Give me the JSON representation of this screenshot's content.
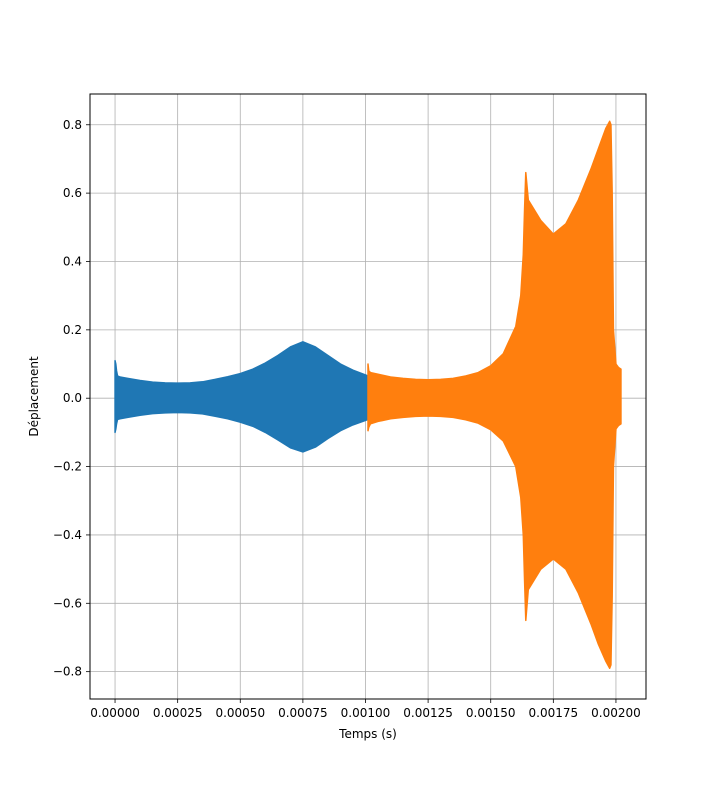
{
  "chart_data": {
    "type": "area",
    "title": "",
    "xlabel": "Temps (s)",
    "ylabel": "Déplacement",
    "xlim": [
      -0.0001,
      0.00212
    ],
    "ylim": [
      -0.88,
      0.89
    ],
    "grid": true,
    "legend": "none",
    "x_ticks": [
      0.0,
      0.00025,
      0.0005,
      0.00075,
      0.001,
      0.00125,
      0.0015,
      0.00175,
      0.002
    ],
    "x_tick_labels": [
      "0.00000",
      "0.00025",
      "0.00050",
      "0.00075",
      "0.00100",
      "0.00125",
      "0.00150",
      "0.00175",
      "0.00200"
    ],
    "y_ticks": [
      -0.8,
      -0.6,
      -0.4,
      -0.2,
      0.0,
      0.2,
      0.4,
      0.6,
      0.8
    ],
    "y_tick_labels": [
      "−0.8",
      "−0.6",
      "−0.4",
      "−0.2",
      "0.0",
      "0.2",
      "0.4",
      "0.6",
      "0.8"
    ],
    "series": [
      {
        "color": "#1f77b4",
        "x": [
          0.0,
          3e-06,
          6e-06,
          1e-05,
          2e-05,
          5e-05,
          0.0001,
          0.00015,
          0.0002,
          0.00025,
          0.0003,
          0.00035,
          0.0004,
          0.00045,
          0.0005,
          0.00055,
          0.0006,
          0.00065,
          0.0007,
          0.00075,
          0.0008,
          0.00085,
          0.0009,
          0.00095,
          0.001,
          0.00101
        ],
        "upper": [
          0.11,
          0.1,
          0.08,
          0.065,
          0.062,
          0.058,
          0.052,
          0.047,
          0.045,
          0.044,
          0.045,
          0.048,
          0.055,
          0.063,
          0.072,
          0.085,
          0.103,
          0.125,
          0.15,
          0.165,
          0.15,
          0.125,
          0.1,
          0.082,
          0.068,
          0.065
        ],
        "lower": [
          -0.1,
          -0.09,
          -0.075,
          -0.062,
          -0.06,
          -0.056,
          -0.05,
          -0.045,
          -0.043,
          -0.042,
          -0.043,
          -0.046,
          -0.053,
          -0.06,
          -0.07,
          -0.082,
          -0.1,
          -0.122,
          -0.145,
          -0.157,
          -0.143,
          -0.118,
          -0.095,
          -0.078,
          -0.065,
          -0.062
        ]
      },
      {
        "color": "#ff7f0e",
        "x": [
          0.00101,
          0.001013,
          0.00102,
          0.00105,
          0.0011,
          0.00115,
          0.0012,
          0.00125,
          0.0013,
          0.00135,
          0.0014,
          0.00145,
          0.0015,
          0.00155,
          0.0016,
          0.00162,
          0.00163,
          0.001635,
          0.00164,
          0.00165,
          0.0017,
          0.00175,
          0.0018,
          0.00185,
          0.0019,
          0.00193,
          0.00196,
          0.001975,
          0.00198,
          0.001985,
          0.00199,
          0.002,
          0.00201,
          0.00202
        ],
        "upper": [
          0.1,
          0.08,
          0.075,
          0.07,
          0.062,
          0.058,
          0.055,
          0.054,
          0.055,
          0.058,
          0.065,
          0.075,
          0.095,
          0.13,
          0.21,
          0.3,
          0.42,
          0.55,
          0.66,
          0.58,
          0.52,
          0.48,
          0.51,
          0.58,
          0.67,
          0.73,
          0.79,
          0.81,
          0.8,
          0.6,
          0.2,
          0.1,
          0.09,
          0.085
        ],
        "lower": [
          -0.095,
          -0.085,
          -0.075,
          -0.068,
          -0.06,
          -0.056,
          -0.053,
          -0.052,
          -0.053,
          -0.056,
          -0.063,
          -0.073,
          -0.092,
          -0.125,
          -0.2,
          -0.29,
          -0.4,
          -0.53,
          -0.65,
          -0.56,
          -0.5,
          -0.47,
          -0.5,
          -0.57,
          -0.66,
          -0.72,
          -0.77,
          -0.79,
          -0.78,
          -0.58,
          -0.2,
          -0.09,
          -0.08,
          -0.075
        ]
      }
    ]
  }
}
